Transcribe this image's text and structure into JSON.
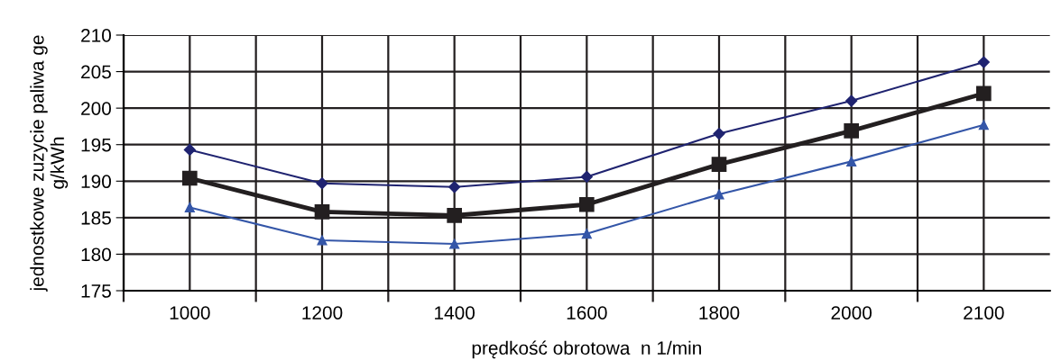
{
  "chart_data": {
    "type": "line",
    "xlabel": "prędkość obrotowa  n 1/min",
    "ylabel": "jednostkowe zuzycie paliwa ge\ng/kWh",
    "categories": [
      "1000",
      "1200",
      "1400",
      "1600",
      "1800",
      "2000",
      "2100"
    ],
    "series": [
      {
        "color": "#1f2370",
        "marker": "diamond",
        "values": [
          194.3,
          189.7,
          189.2,
          190.6,
          196.5,
          201.0,
          206.3
        ]
      },
      {
        "color": "#231f20",
        "marker": "square",
        "values": [
          190.4,
          185.8,
          185.3,
          186.8,
          192.3,
          196.9,
          202.0
        ]
      },
      {
        "color": "#3456a8",
        "marker": "triangle",
        "values": [
          186.4,
          181.9,
          181.4,
          182.8,
          188.2,
          192.7,
          197.7
        ]
      }
    ],
    "ylim": [
      175,
      210
    ],
    "yticks": [
      175,
      180,
      185,
      190,
      195,
      200,
      205,
      210
    ],
    "grid": true,
    "legend": false
  }
}
